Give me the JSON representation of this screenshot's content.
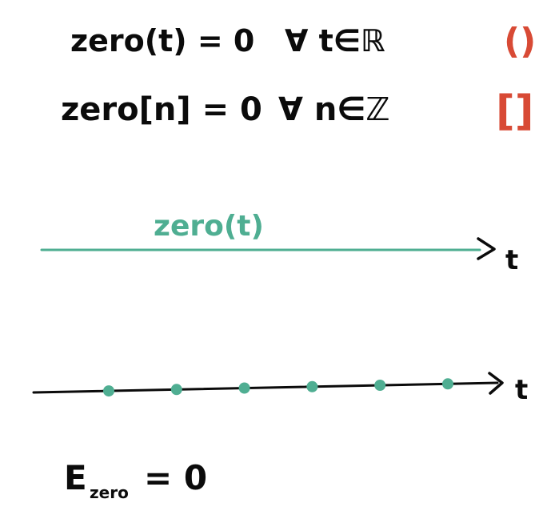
{
  "colors": {
    "ink": "#0b0b0b",
    "teal": "#4fae92",
    "red": "#d84a35",
    "background": "#ffffff"
  },
  "equations": {
    "continuous": {
      "lhs": "zero(t) = 0",
      "quantifier": "∀ t∈ℝ",
      "bracket": "()"
    },
    "discrete": {
      "lhs": "zero[n] = 0",
      "quantifier": "∀ n∈ℤ",
      "bracket": "[]"
    }
  },
  "continuous_plot": {
    "label": "zero(t)",
    "axis_label": "t"
  },
  "discrete_plot": {
    "axis_label": "t",
    "samples": [
      0,
      0,
      0,
      0,
      0,
      0
    ]
  },
  "energy": {
    "symbol": "E",
    "subscript": "zero",
    "rhs": "= 0"
  }
}
